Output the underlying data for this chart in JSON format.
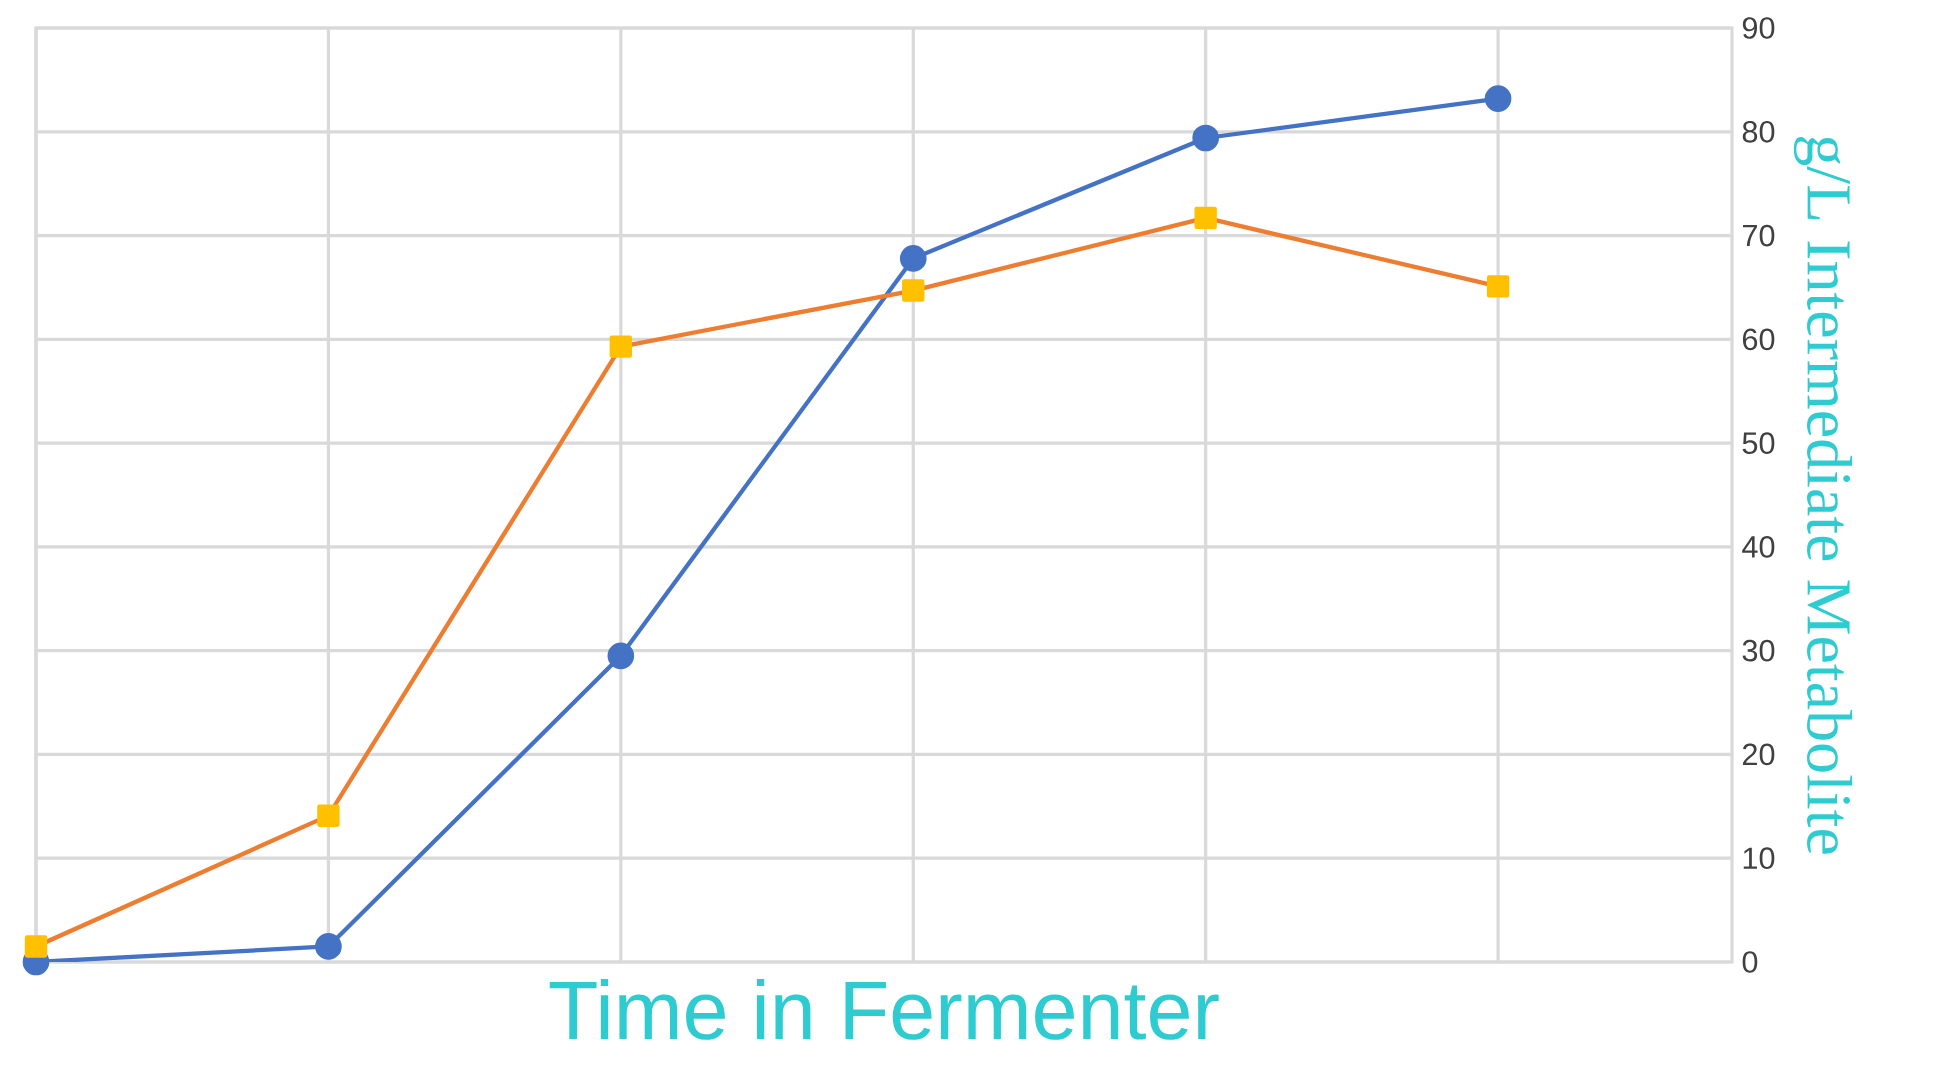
{
  "chart_data": {
    "type": "line",
    "xlabel": "Time in Fermenter",
    "ylabel": "g/L Intermediate Metabolite",
    "categories": [
      null,
      null,
      null,
      null,
      null,
      null
    ],
    "ylim": [
      0,
      90
    ],
    "yticks": [
      0,
      10,
      20,
      30,
      40,
      50,
      60,
      70,
      80,
      90
    ],
    "grid": true,
    "line_style": "solid",
    "series": [
      {
        "color": "#4472c4",
        "marker": "circle",
        "values": [
          0,
          1.5,
          29.5,
          67.8,
          79.4,
          83.2
        ]
      },
      {
        "color": "#ed7d31",
        "marker": "square",
        "values": [
          1.5,
          14.1,
          59.3,
          64.7,
          71.7,
          65.1
        ]
      }
    ]
  }
}
